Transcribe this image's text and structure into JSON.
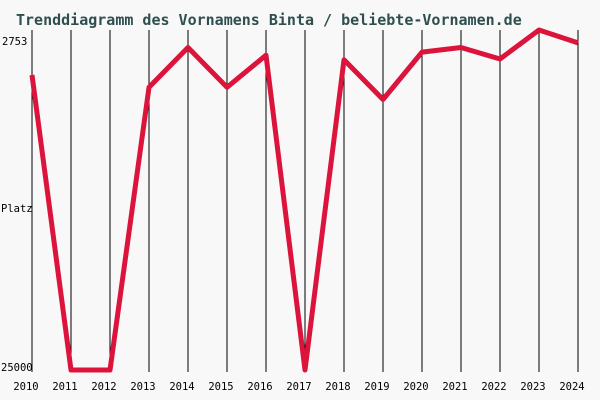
{
  "title": "Trenddiagramm des Vornamens Binta / beliebte-Vornamen.de",
  "colors": {
    "background": "#f8f8f8",
    "title_text": "#2f4f4f",
    "line": "#dc143c",
    "grid": "#000000",
    "axis_text": "#000000"
  },
  "y_axis": {
    "top_label": "2753",
    "axis_name": "Platz",
    "bottom_label": "25000"
  },
  "chart_data": {
    "type": "line",
    "title": "Trenddiagramm des Vornamens Binta / beliebte-Vornamen.de",
    "series_name": "Binta",
    "xlabel": "",
    "ylabel": "Platz",
    "categories": [
      "2010",
      "2011",
      "2012",
      "2013",
      "2014",
      "2015",
      "2016",
      "2017",
      "2018",
      "2019",
      "2020",
      "2021",
      "2022",
      "2023",
      "2024"
    ],
    "values": [
      5700,
      25000,
      25000,
      6500,
      3900,
      6500,
      4400,
      25000,
      4700,
      7300,
      4200,
      3900,
      4650,
      2753,
      3600
    ],
    "ylim": [
      25000,
      2753
    ],
    "y_inverted": true,
    "y_tick_labels": [
      "2753",
      "25000"
    ],
    "grid": "vertical-only",
    "legend": "none",
    "line_color": "#dc143c"
  }
}
